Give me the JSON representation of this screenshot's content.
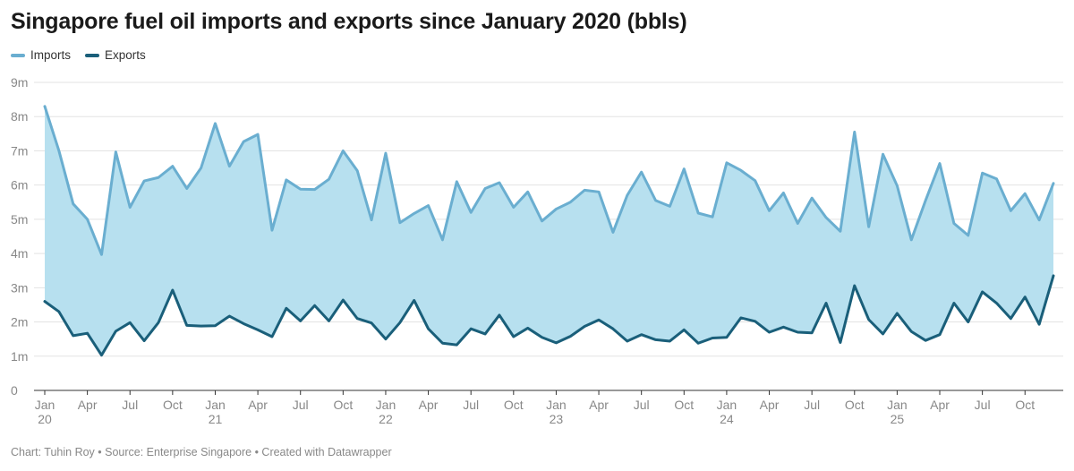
{
  "title": "Singapore fuel oil imports and exports since January 2020 (bbls)",
  "footer": "Chart: Tuhin Roy • Source: Enterprise Singapore • Created with Datawrapper",
  "colors": {
    "imports": "#6aaed0",
    "exports": "#1a5f7a",
    "area": "#b7e0ef",
    "grid": "#e3e3e3",
    "axis": "#333333"
  },
  "chart_data": {
    "type": "area",
    "title": "Singapore fuel oil imports and exports since January 2020 (bbls)",
    "ylim": [
      0,
      9
    ],
    "y_ticks": [
      "0",
      "1m",
      "2m",
      "3m",
      "4m",
      "5m",
      "6m",
      "7m",
      "8m",
      "9m"
    ],
    "x_ticks": [
      {
        "month": "Jan",
        "year": "20"
      },
      {
        "month": "Apr",
        "year": ""
      },
      {
        "month": "Jul",
        "year": ""
      },
      {
        "month": "Oct",
        "year": ""
      },
      {
        "month": "Jan",
        "year": "21"
      },
      {
        "month": "Apr",
        "year": ""
      },
      {
        "month": "Jul",
        "year": ""
      },
      {
        "month": "Oct",
        "year": ""
      },
      {
        "month": "Jan",
        "year": "22"
      },
      {
        "month": "Apr",
        "year": ""
      },
      {
        "month": "Jul",
        "year": ""
      },
      {
        "month": "Oct",
        "year": ""
      },
      {
        "month": "Jan",
        "year": "23"
      },
      {
        "month": "Apr",
        "year": ""
      },
      {
        "month": "Jul",
        "year": ""
      },
      {
        "month": "Oct",
        "year": ""
      },
      {
        "month": "Jan",
        "year": "24"
      },
      {
        "month": "Apr",
        "year": ""
      },
      {
        "month": "Jul",
        "year": ""
      },
      {
        "month": "Oct",
        "year": ""
      },
      {
        "month": "Jan",
        "year": "25"
      },
      {
        "month": "Apr",
        "year": ""
      },
      {
        "month": "Jul",
        "year": ""
      },
      {
        "month": "Oct",
        "year": ""
      }
    ],
    "series": [
      {
        "name": "Imports",
        "values": [
          8.3,
          7.0,
          5.45,
          5.0,
          3.97,
          6.97,
          5.35,
          6.12,
          6.22,
          6.55,
          5.9,
          6.5,
          7.8,
          6.55,
          7.27,
          7.48,
          4.68,
          6.15,
          5.88,
          5.87,
          6.17,
          7.0,
          6.42,
          4.98,
          6.93,
          4.9,
          5.17,
          5.4,
          4.4,
          6.1,
          5.2,
          5.9,
          6.07,
          5.35,
          5.8,
          4.95,
          5.3,
          5.5,
          5.85,
          5.8,
          4.62,
          5.7,
          6.38,
          5.55,
          5.38,
          6.47,
          5.18,
          5.07,
          6.65,
          6.43,
          6.13,
          5.25,
          5.77,
          4.88,
          5.62,
          5.05,
          4.65,
          7.55,
          4.78,
          6.9,
          5.98,
          4.4,
          5.55,
          6.63,
          4.88,
          4.53,
          6.35,
          6.18,
          5.25,
          5.75,
          4.98,
          6.05
        ]
      },
      {
        "name": "Exports",
        "values": [
          2.6,
          2.3,
          1.6,
          1.67,
          1.03,
          1.73,
          1.98,
          1.45,
          1.98,
          2.93,
          1.9,
          1.88,
          1.89,
          2.17,
          1.95,
          1.77,
          1.57,
          2.4,
          2.03,
          2.48,
          2.03,
          2.64,
          2.1,
          1.97,
          1.5,
          1.98,
          2.63,
          1.8,
          1.38,
          1.33,
          1.8,
          1.65,
          2.2,
          1.57,
          1.82,
          1.55,
          1.39,
          1.58,
          1.87,
          2.06,
          1.8,
          1.44,
          1.63,
          1.48,
          1.44,
          1.77,
          1.38,
          1.53,
          1.55,
          2.12,
          2.02,
          1.7,
          1.85,
          1.7,
          1.68,
          2.55,
          1.4,
          3.06,
          2.07,
          1.65,
          2.25,
          1.72,
          1.46,
          1.63,
          2.55,
          2.0,
          2.88,
          2.55,
          2.1,
          2.73,
          1.93,
          3.35
        ]
      }
    ]
  }
}
